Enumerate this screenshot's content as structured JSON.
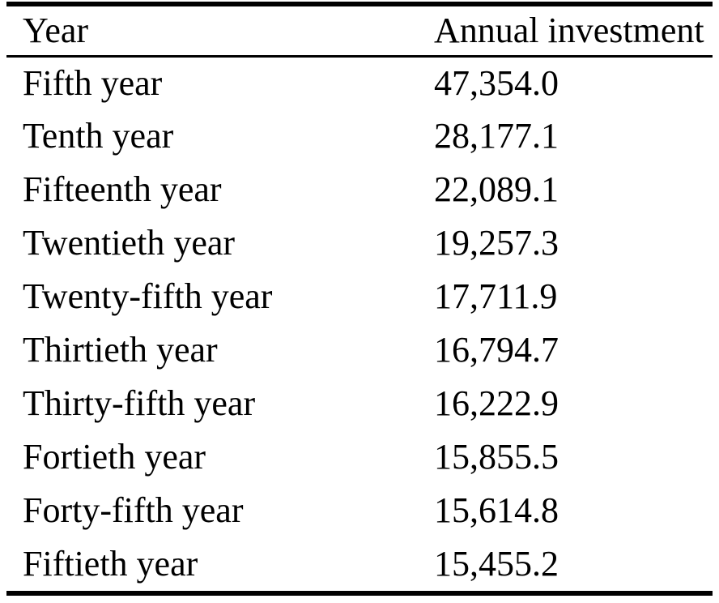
{
  "colors": {
    "background": "#ffffff",
    "text": "#000000",
    "rule": "#000000"
  },
  "table": {
    "columns": {
      "year_label": "Year",
      "investment_label": "Annual investment"
    },
    "rows": [
      {
        "year": "Fifth year",
        "value": "47,354.0"
      },
      {
        "year": "Tenth year",
        "value": "28,177.1"
      },
      {
        "year": "Fifteenth year",
        "value": "22,089.1"
      },
      {
        "year": "Twentieth year",
        "value": "19,257.3"
      },
      {
        "year": "Twenty-fifth year",
        "value": "17,711.9"
      },
      {
        "year": "Thirtieth year",
        "value": "16,794.7"
      },
      {
        "year": "Thirty-fifth year",
        "value": "16,222.9"
      },
      {
        "year": "Fortieth year",
        "value": "15,855.5"
      },
      {
        "year": "Forty-fifth year",
        "value": "15,614.8"
      },
      {
        "year": "Fiftieth year",
        "value": "15,455.2"
      }
    ]
  },
  "chart_data": {
    "type": "table",
    "title": "",
    "columns": [
      "Year",
      "Annual investment"
    ],
    "rows": [
      [
        "Fifth year",
        47354.0
      ],
      [
        "Tenth year",
        28177.1
      ],
      [
        "Fifteenth year",
        22089.1
      ],
      [
        "Twentieth year",
        19257.3
      ],
      [
        "Twenty-fifth year",
        17711.9
      ],
      [
        "Thirtieth year",
        16794.7
      ],
      [
        "Thirty-fifth year",
        16222.9
      ],
      [
        "Fortieth year",
        15855.5
      ],
      [
        "Forty-fifth year",
        15614.8
      ],
      [
        "Fiftieth year",
        15455.2
      ]
    ]
  }
}
